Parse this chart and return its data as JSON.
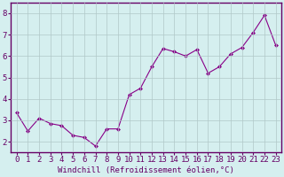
{
  "x": [
    0,
    1,
    2,
    3,
    4,
    5,
    6,
    7,
    8,
    9,
    10,
    11,
    12,
    13,
    14,
    15,
    16,
    17,
    18,
    19,
    20,
    21,
    22,
    23
  ],
  "y": [
    3.35,
    2.5,
    3.1,
    2.85,
    2.75,
    2.3,
    2.2,
    1.8,
    2.6,
    2.6,
    4.2,
    4.5,
    5.5,
    6.35,
    6.2,
    6.0,
    6.3,
    5.2,
    5.5,
    6.1,
    6.4,
    7.1,
    7.9,
    6.5
  ],
  "line_color": "#880088",
  "marker": "D",
  "marker_size": 2,
  "bg_color": "#d5efef",
  "grid_color": "#b0c8c8",
  "xlabel": "Windchill (Refroidissement éolien,°C)",
  "ylabel_ticks": [
    2,
    3,
    4,
    5,
    6,
    7,
    8
  ],
  "xtick_labels": [
    "0",
    "1",
    "2",
    "3",
    "4",
    "5",
    "6",
    "7",
    "8",
    "9",
    "10",
    "11",
    "12",
    "13",
    "14",
    "15",
    "16",
    "17",
    "18",
    "19",
    "20",
    "21",
    "22",
    "23"
  ],
  "xlim": [
    -0.5,
    23.5
  ],
  "ylim": [
    1.5,
    8.5
  ],
  "spine_color": "#660066",
  "label_color": "#660066",
  "xlabel_fontsize": 6.5,
  "tick_fontsize": 6.5
}
